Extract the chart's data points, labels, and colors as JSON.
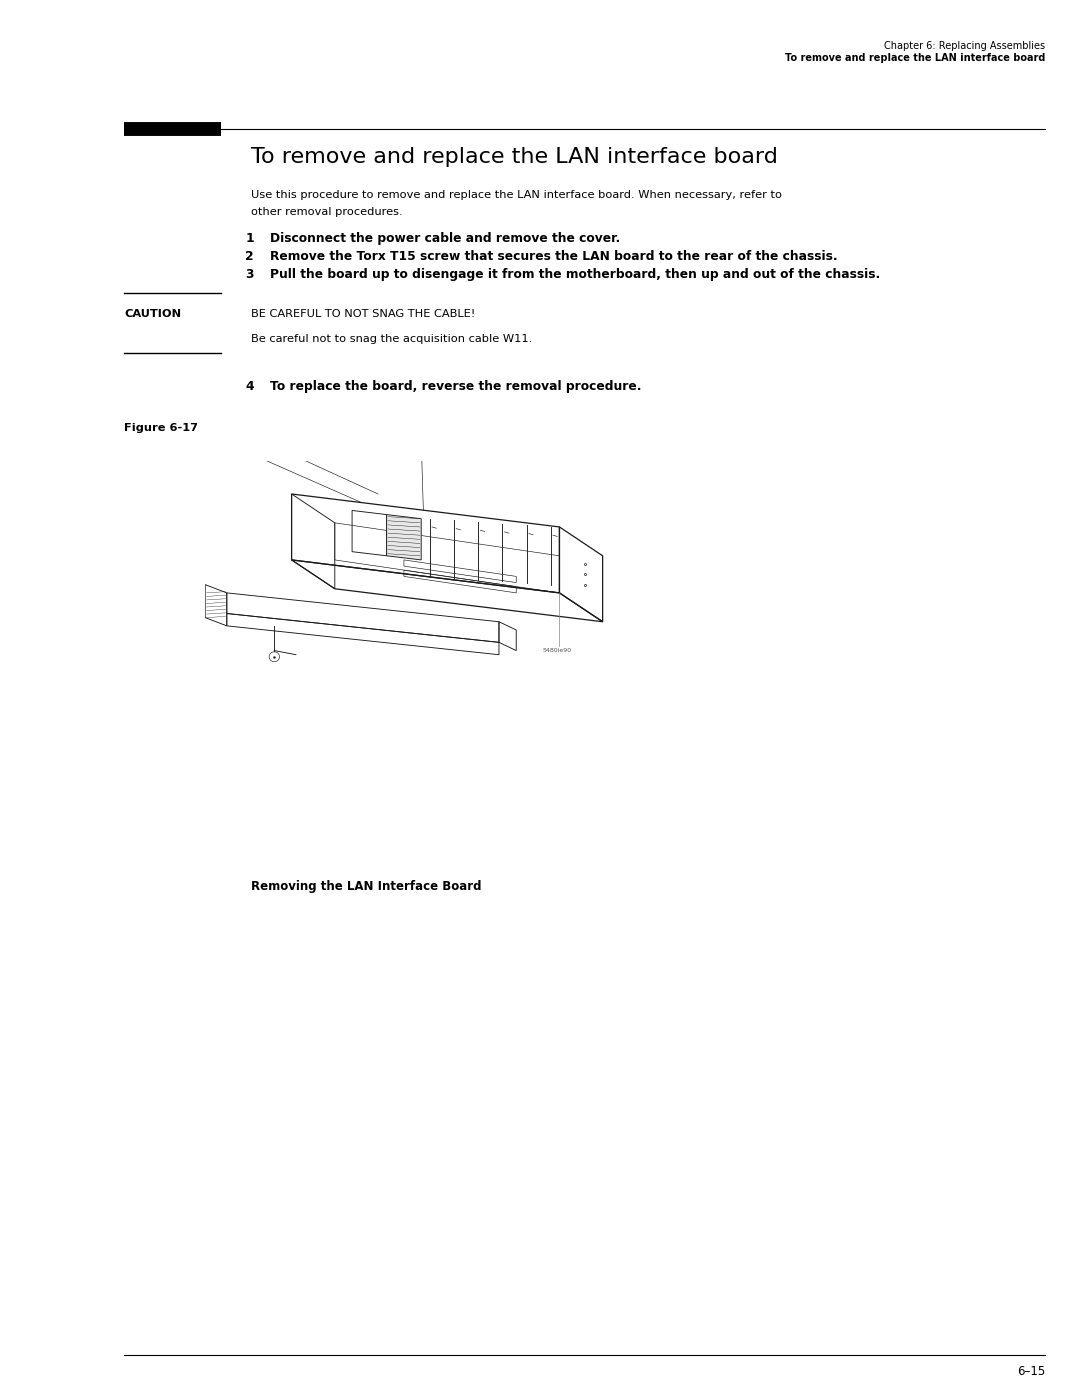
{
  "page_width": 10.8,
  "page_height": 13.97,
  "bg_color": "#ffffff",
  "header_line1": "Chapter 6: Replacing Assemblies",
  "header_line2": "To remove and replace the LAN interface board",
  "section_title": "To remove and replace the LAN interface board",
  "intro_text_l1": "Use this procedure to remove and replace the LAN interface board. When necessary, refer to",
  "intro_text_l2": "other removal procedures.",
  "steps": [
    {
      "num": "1",
      "text": "Disconnect the power cable and remove the cover."
    },
    {
      "num": "2",
      "text": "Remove the Torx T15 screw that secures the LAN board to the rear of the chassis."
    },
    {
      "num": "3",
      "text": "Pull the board up to disengage it from the motherboard, then up and out of the chassis."
    }
  ],
  "caution_label": "CAUTION",
  "caution_line1": "BE CAREFUL TO NOT SNAG THE CABLE!",
  "caution_line2": "Be careful not to snag the acquisition cable W11.",
  "step4_num": "4",
  "step4_text": "To replace the board, reverse the removal procedure.",
  "figure_label": "Figure 6-17",
  "figure_caption": "Removing the LAN Interface Board",
  "figure_id": "5480ie90",
  "footer_text": "6–15",
  "lm": 0.115,
  "cl": 0.232,
  "rm": 0.968
}
